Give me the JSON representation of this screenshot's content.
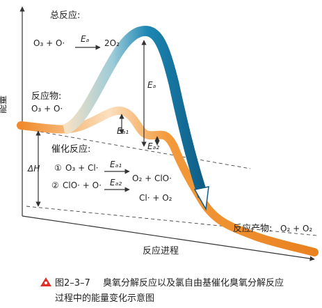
{
  "axes": {
    "y_label": "能量",
    "x_label": "反应进程"
  },
  "overall": {
    "title": "总反应:",
    "reactants": "O₃ + O·",
    "barrier": "Eₐ",
    "products": "2O₂"
  },
  "peak_label": "Eₐ",
  "reactant_label": {
    "title": "反应物:",
    "formula": "O₃ + O·"
  },
  "step_barriers": [
    "Eₐ₁",
    "Eₐ₂"
  ],
  "catalysis": {
    "title": "催化反应:",
    "steps": [
      {
        "number": "①",
        "reactants": "O₃ + Cl·",
        "barrier": "Eₐ₁",
        "products": "O₂ + ClO·"
      },
      {
        "number": "②",
        "reactants": "ClO· + O·",
        "barrier": "Eₐ₂",
        "products": "Cl· + O₂"
      }
    ]
  },
  "delta_h": "ΔH",
  "product_label": {
    "title": "反应产物:",
    "formula": "O₂ + O₂"
  },
  "caption": {
    "figure": "图2–3–7",
    "line1": "臭氧分解反应以及氯自由基催化臭氧分解反应",
    "line2": "过程中的能量变化示意图"
  }
}
